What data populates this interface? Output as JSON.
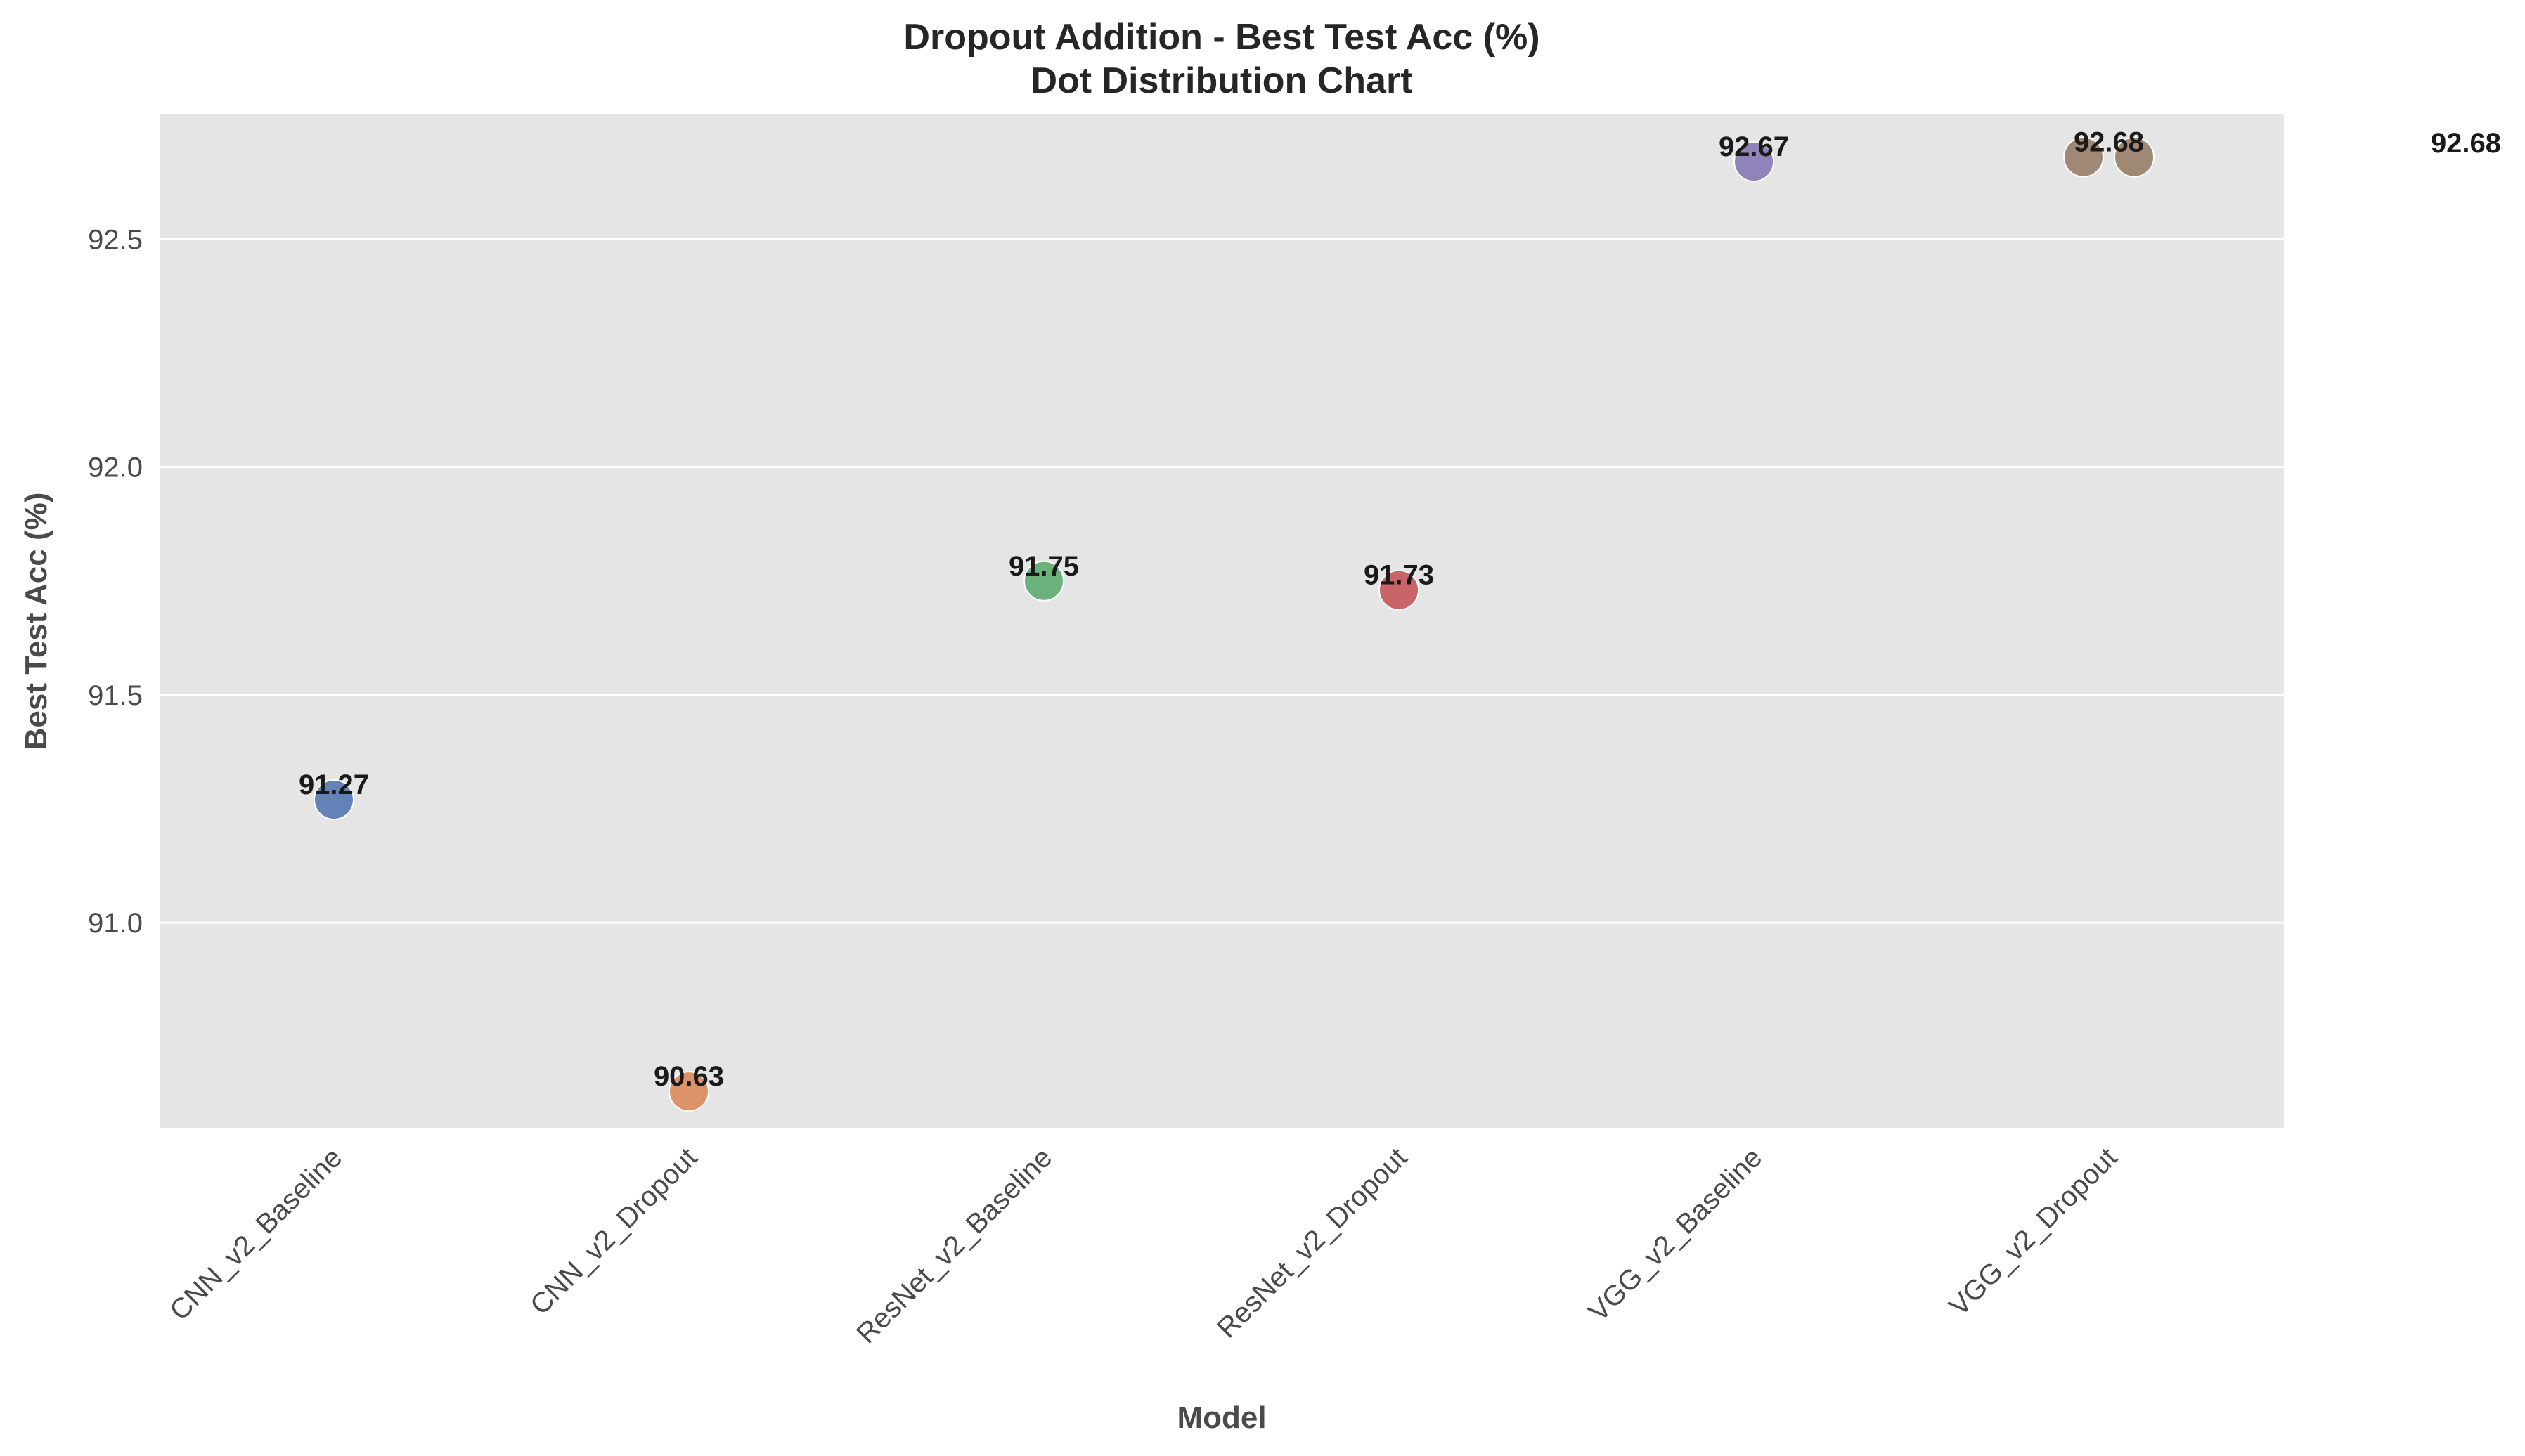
{
  "chart_data": {
    "type": "scatter",
    "title": "Dropout Addition - Best Test Acc (%)",
    "subtitle": "Dot Distribution Chart",
    "xlabel": "Model",
    "ylabel": "Best Test Acc (%)",
    "categories": [
      "CNN_v2_Baseline",
      "CNN_v2_Dropout",
      "ResNet_v2_Baseline",
      "ResNet_v2_Dropout",
      "VGG_v2_Baseline",
      "VGG_v2_Dropout"
    ],
    "ylim": [
      90.55,
      92.775
    ],
    "yticks": [
      "91.0",
      "91.5",
      "92.0",
      "92.5"
    ],
    "ytick_values": [
      91.0,
      91.5,
      92.0,
      92.5
    ],
    "grid": true,
    "background_color": "#e5e5e5",
    "points": [
      {
        "category": "CNN_v2_Baseline",
        "value": 91.27,
        "label": "91.27",
        "color": "#4c72b0"
      },
      {
        "category": "CNN_v2_Dropout",
        "value": 90.63,
        "label": "90.63",
        "color": "#dd8452"
      },
      {
        "category": "ResNet_v2_Baseline",
        "value": 91.75,
        "label": "91.75",
        "color": "#55a868"
      },
      {
        "category": "ResNet_v2_Dropout",
        "value": 91.73,
        "label": "91.73",
        "color": "#c44e52"
      },
      {
        "category": "VGG_v2_Baseline",
        "value": 92.67,
        "label": "92.67",
        "color": "#8172b3"
      },
      {
        "category": "VGG_v2_Dropout",
        "value": 92.68,
        "label": "92.68",
        "color": "#937860"
      },
      {
        "category": "VGG_v2_Dropout",
        "value": 92.68,
        "label": "92.68",
        "color": "#937860"
      }
    ],
    "extra_labels": [
      "92.68"
    ]
  }
}
